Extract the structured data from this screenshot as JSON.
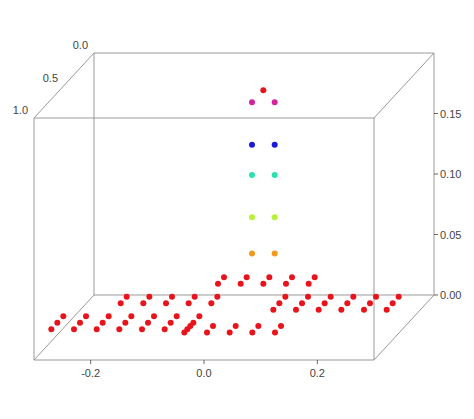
{
  "chart_data": {
    "type": "scatter3d",
    "xlim": [
      -0.3,
      0.3
    ],
    "xticks": [
      -0.2,
      {
        "value": 0,
        "label": "0.0"
      },
      0.2
    ],
    "ylim": [
      0,
      1
    ],
    "yticks": [
      {
        "value": 0,
        "label": "0.0"
      },
      0.5,
      {
        "value": 1,
        "label": "1.0"
      }
    ],
    "zlim": [
      0,
      0.2
    ],
    "zticks": [
      {
        "value": 0,
        "label": "0.00"
      },
      0.05,
      {
        "value": 0.1,
        "label": "0.10"
      },
      0.15
    ],
    "series": [
      {
        "color": "#e8141c",
        "points": [
          [
            -0.28,
            0.7,
            0.02
          ],
          [
            -0.24,
            0.7,
            0.02
          ],
          [
            -0.2,
            0.7,
            0.02
          ],
          [
            -0.16,
            0.7,
            0.02
          ],
          [
            -0.12,
            0.7,
            0.02
          ],
          [
            -0.08,
            0.7,
            0.02
          ],
          [
            -0.04,
            0.7,
            0.02
          ],
          [
            -0.28,
            0.8,
            0.02
          ],
          [
            -0.24,
            0.8,
            0.02
          ],
          [
            -0.2,
            0.8,
            0.02
          ],
          [
            -0.16,
            0.8,
            0.02
          ],
          [
            -0.12,
            0.8,
            0.02
          ],
          [
            -0.08,
            0.8,
            0.02
          ],
          [
            -0.04,
            0.8,
            0.02
          ],
          [
            -0.28,
            0.9,
            0.02
          ],
          [
            -0.24,
            0.9,
            0.02
          ],
          [
            -0.2,
            0.9,
            0.02
          ],
          [
            -0.16,
            0.9,
            0.02
          ],
          [
            -0.12,
            0.9,
            0.02
          ],
          [
            -0.08,
            0.9,
            0.02
          ],
          [
            -0.04,
            0.9,
            0.02
          ],
          [
            -0.2,
            0.4,
            0.02
          ],
          [
            -0.16,
            0.4,
            0.02
          ],
          [
            -0.12,
            0.4,
            0.02
          ],
          [
            -0.08,
            0.4,
            0.02
          ],
          [
            -0.04,
            0.4,
            0.02
          ],
          [
            -0.2,
            0.5,
            0.02
          ],
          [
            -0.16,
            0.5,
            0.02
          ],
          [
            -0.12,
            0.5,
            0.02
          ],
          [
            -0.08,
            0.5,
            0.02
          ],
          [
            -0.04,
            0.5,
            0.02
          ],
          [
            0.08,
            0.4,
            0.02
          ],
          [
            0.12,
            0.4,
            0.02
          ],
          [
            0.16,
            0.4,
            0.02
          ],
          [
            0.2,
            0.4,
            0.02
          ],
          [
            0.24,
            0.4,
            0.02
          ],
          [
            0.28,
            0.4,
            0.02
          ],
          [
            0.08,
            0.5,
            0.02
          ],
          [
            0.12,
            0.5,
            0.02
          ],
          [
            0.16,
            0.5,
            0.02
          ],
          [
            0.2,
            0.5,
            0.02
          ],
          [
            0.24,
            0.5,
            0.02
          ],
          [
            0.28,
            0.5,
            0.02
          ],
          [
            0.08,
            0.6,
            0.02
          ],
          [
            0.12,
            0.6,
            0.02
          ],
          [
            0.16,
            0.6,
            0.02
          ],
          [
            0.2,
            0.6,
            0.02
          ],
          [
            0.24,
            0.6,
            0.02
          ],
          [
            0.28,
            0.6,
            0.02
          ],
          [
            -0.06,
            0.1,
            0.02
          ],
          [
            -0.02,
            0.1,
            0.02
          ],
          [
            0.02,
            0.1,
            0.02
          ],
          [
            0.06,
            0.1,
            0.02
          ],
          [
            0.1,
            0.1,
            0.02
          ],
          [
            -0.06,
            0.2,
            0.02
          ],
          [
            -0.02,
            0.2,
            0.02
          ],
          [
            0.02,
            0.2,
            0.02
          ],
          [
            0.06,
            0.2,
            0.02
          ],
          [
            0.1,
            0.2,
            0.02
          ],
          [
            -0.04,
            0.85,
            0.02
          ],
          [
            0,
            0.85,
            0.02
          ],
          [
            0.04,
            0.85,
            0.02
          ],
          [
            0.08,
            0.85,
            0.02
          ],
          [
            0.12,
            0.85,
            0.02
          ],
          [
            -0.04,
            0.95,
            0.02
          ],
          [
            0,
            0.95,
            0.02
          ],
          [
            0.04,
            0.95,
            0.02
          ],
          [
            0.08,
            0.95,
            0.02
          ],
          [
            0.12,
            0.95,
            0.02
          ],
          [
            0.02,
            0.2,
            0.18
          ]
        ]
      },
      {
        "color": "#f09a20",
        "points": [
          [
            0,
            0.2,
            0.045
          ],
          [
            0.04,
            0.2,
            0.045
          ]
        ]
      },
      {
        "color": "#b8f03a",
        "points": [
          [
            0,
            0.2,
            0.075
          ],
          [
            0.04,
            0.2,
            0.075
          ]
        ]
      },
      {
        "color": "#2de0b0",
        "points": [
          [
            0,
            0.2,
            0.11
          ],
          [
            0.04,
            0.2,
            0.11
          ]
        ]
      },
      {
        "color": "#1a1ad6",
        "points": [
          [
            0,
            0.2,
            0.135
          ],
          [
            0.04,
            0.2,
            0.135
          ]
        ]
      },
      {
        "color": "#d4239b",
        "points": [
          [
            0,
            0.2,
            0.17
          ],
          [
            0.04,
            0.2,
            0.17
          ]
        ]
      }
    ]
  }
}
